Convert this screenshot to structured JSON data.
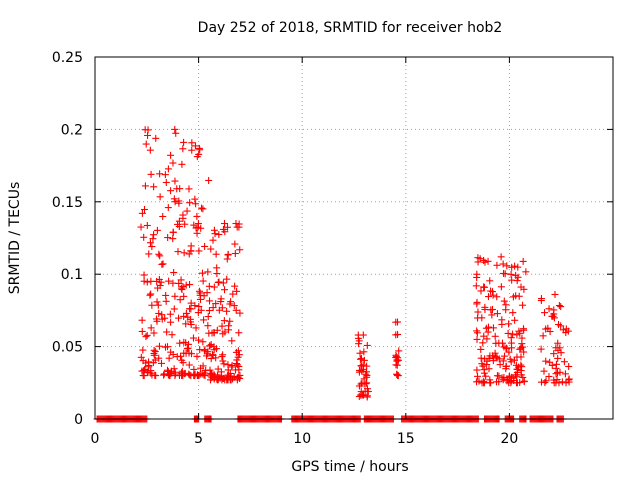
{
  "chart_data": {
    "type": "scatter",
    "title": "Day 252 of 2018, SRMTID for receiver hob2",
    "xlabel": "GPS time / hours",
    "ylabel": "SRMTID / TECUs",
    "xlim": [
      0,
      25
    ],
    "ylim": [
      0,
      0.25
    ],
    "x_ticks": [
      0,
      5,
      10,
      15,
      20
    ],
    "x_tick_labels": [
      "0",
      "5",
      "10",
      "15",
      "20"
    ],
    "y_ticks": [
      0,
      0.05,
      0.1,
      0.15,
      0.2,
      0.25
    ],
    "y_tick_labels": [
      "0",
      "0.05",
      "0.1",
      "0.15",
      "0.2",
      "0.25"
    ],
    "grid": true,
    "marker": "+",
    "series": [
      {
        "name": "SRMTID",
        "color": "#ff0000",
        "clusters": [
          {
            "x_start": 2.2,
            "x_end": 5.5,
            "y_min": 0.03,
            "y_max": 0.2,
            "count": 260
          },
          {
            "x_start": 5.5,
            "x_end": 7.0,
            "y_min": 0.027,
            "y_max": 0.135,
            "count": 130
          },
          {
            "x_start": 12.7,
            "x_end": 13.2,
            "y_min": 0.015,
            "y_max": 0.058,
            "count": 40
          },
          {
            "x_start": 14.5,
            "x_end": 14.7,
            "y_min": 0.03,
            "y_max": 0.067,
            "count": 18
          },
          {
            "x_start": 18.4,
            "x_end": 20.8,
            "y_min": 0.025,
            "y_max": 0.112,
            "count": 170
          },
          {
            "x_start": 21.5,
            "x_end": 22.9,
            "y_min": 0.025,
            "y_max": 0.086,
            "count": 55
          }
        ],
        "zero_baseline_ranges": [
          [
            0.1,
            2.5
          ],
          [
            4.8,
            5.0
          ],
          [
            5.3,
            5.6
          ],
          [
            6.9,
            9.0
          ],
          [
            9.5,
            12.8
          ],
          [
            13.0,
            14.4
          ],
          [
            14.8,
            18.5
          ],
          [
            18.8,
            19.5
          ],
          [
            19.8,
            20.2
          ],
          [
            20.5,
            20.8
          ],
          [
            21.0,
            22.1
          ],
          [
            22.3,
            22.6
          ]
        ]
      }
    ]
  }
}
